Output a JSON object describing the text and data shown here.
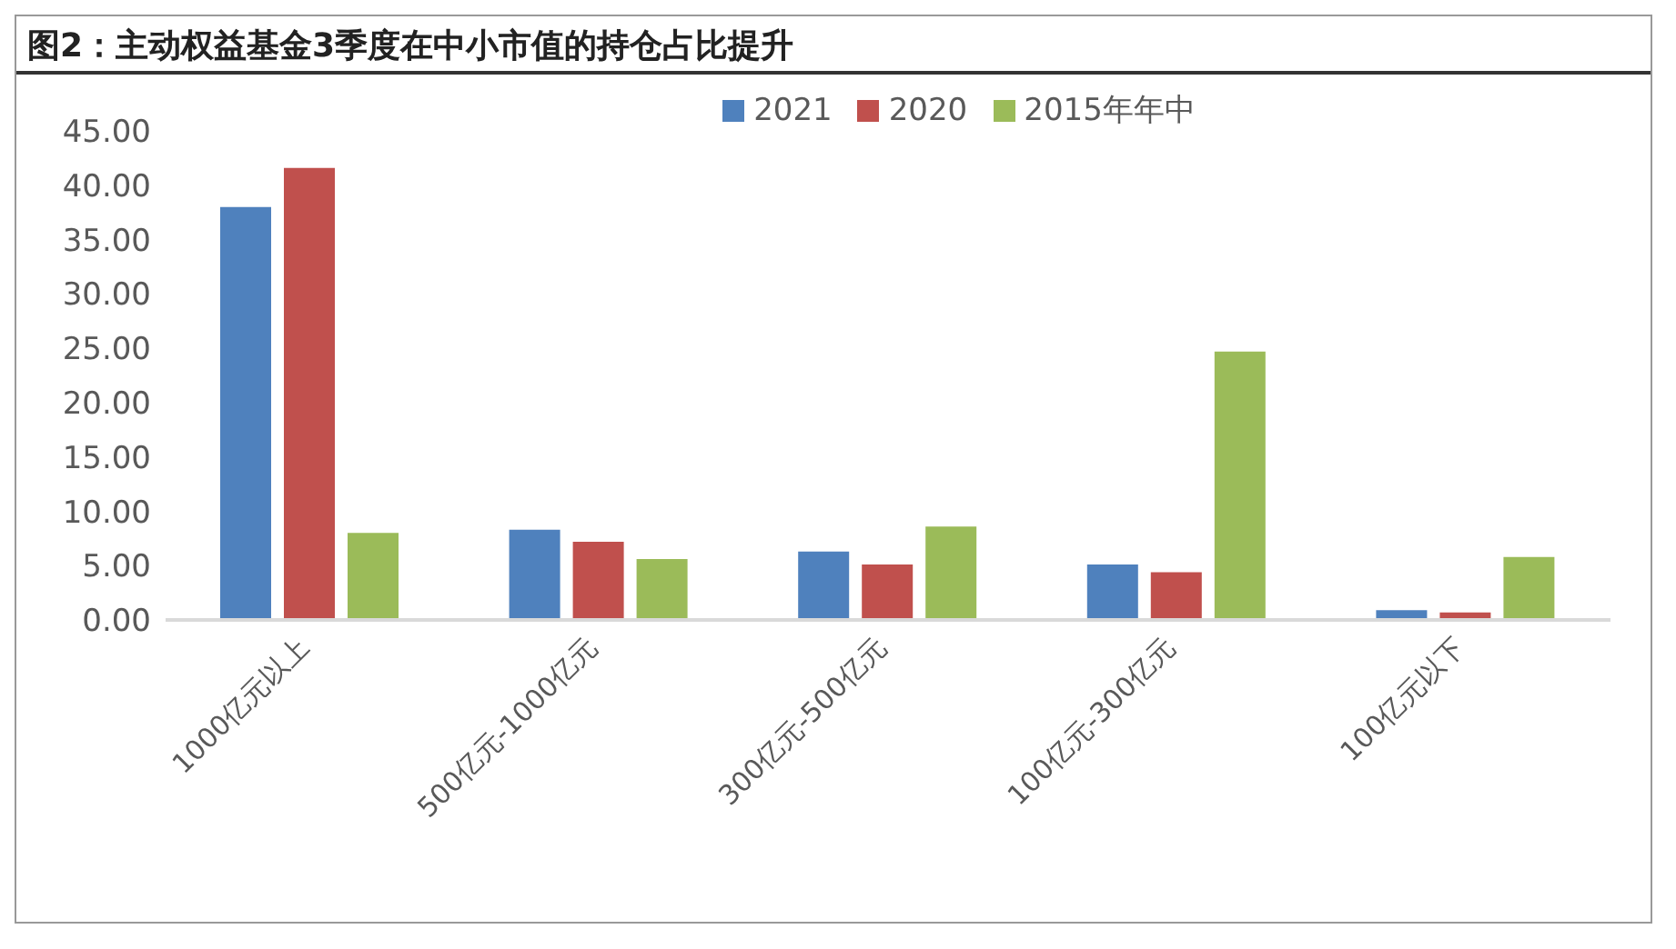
{
  "chart_data": {
    "type": "bar",
    "title": "图2：主动权益基金3季度在中小市值的持仓占比提升",
    "categories": [
      "1000亿元以上",
      "500亿元-1000亿元",
      "300亿元-500亿元",
      "100亿元-300亿元",
      "100亿元以下"
    ],
    "series": [
      {
        "name": "2021",
        "color": "#4f81bd",
        "values": [
          38.0,
          8.3,
          6.3,
          5.1,
          0.9
        ]
      },
      {
        "name": "2020",
        "color": "#c0504d",
        "values": [
          41.6,
          7.2,
          5.1,
          4.4,
          0.7
        ]
      },
      {
        "name": "2015年年中",
        "color": "#9bbb59",
        "values": [
          8.0,
          5.6,
          8.6,
          24.7,
          5.8
        ]
      }
    ],
    "ylim": [
      0,
      45
    ],
    "yticks": [
      {
        "value": 0,
        "label": "0.00"
      },
      {
        "value": 5,
        "label": "5.00"
      },
      {
        "value": 10,
        "label": "10.00"
      },
      {
        "value": 15,
        "label": "15.00"
      },
      {
        "value": 20,
        "label": "20.00"
      },
      {
        "value": 25,
        "label": "25.00"
      },
      {
        "value": 30,
        "label": "30.00"
      },
      {
        "value": 35,
        "label": "35.00"
      },
      {
        "value": 40,
        "label": "40.00"
      },
      {
        "value": 45,
        "label": "45.00"
      }
    ],
    "grid": false,
    "legend": "top"
  }
}
